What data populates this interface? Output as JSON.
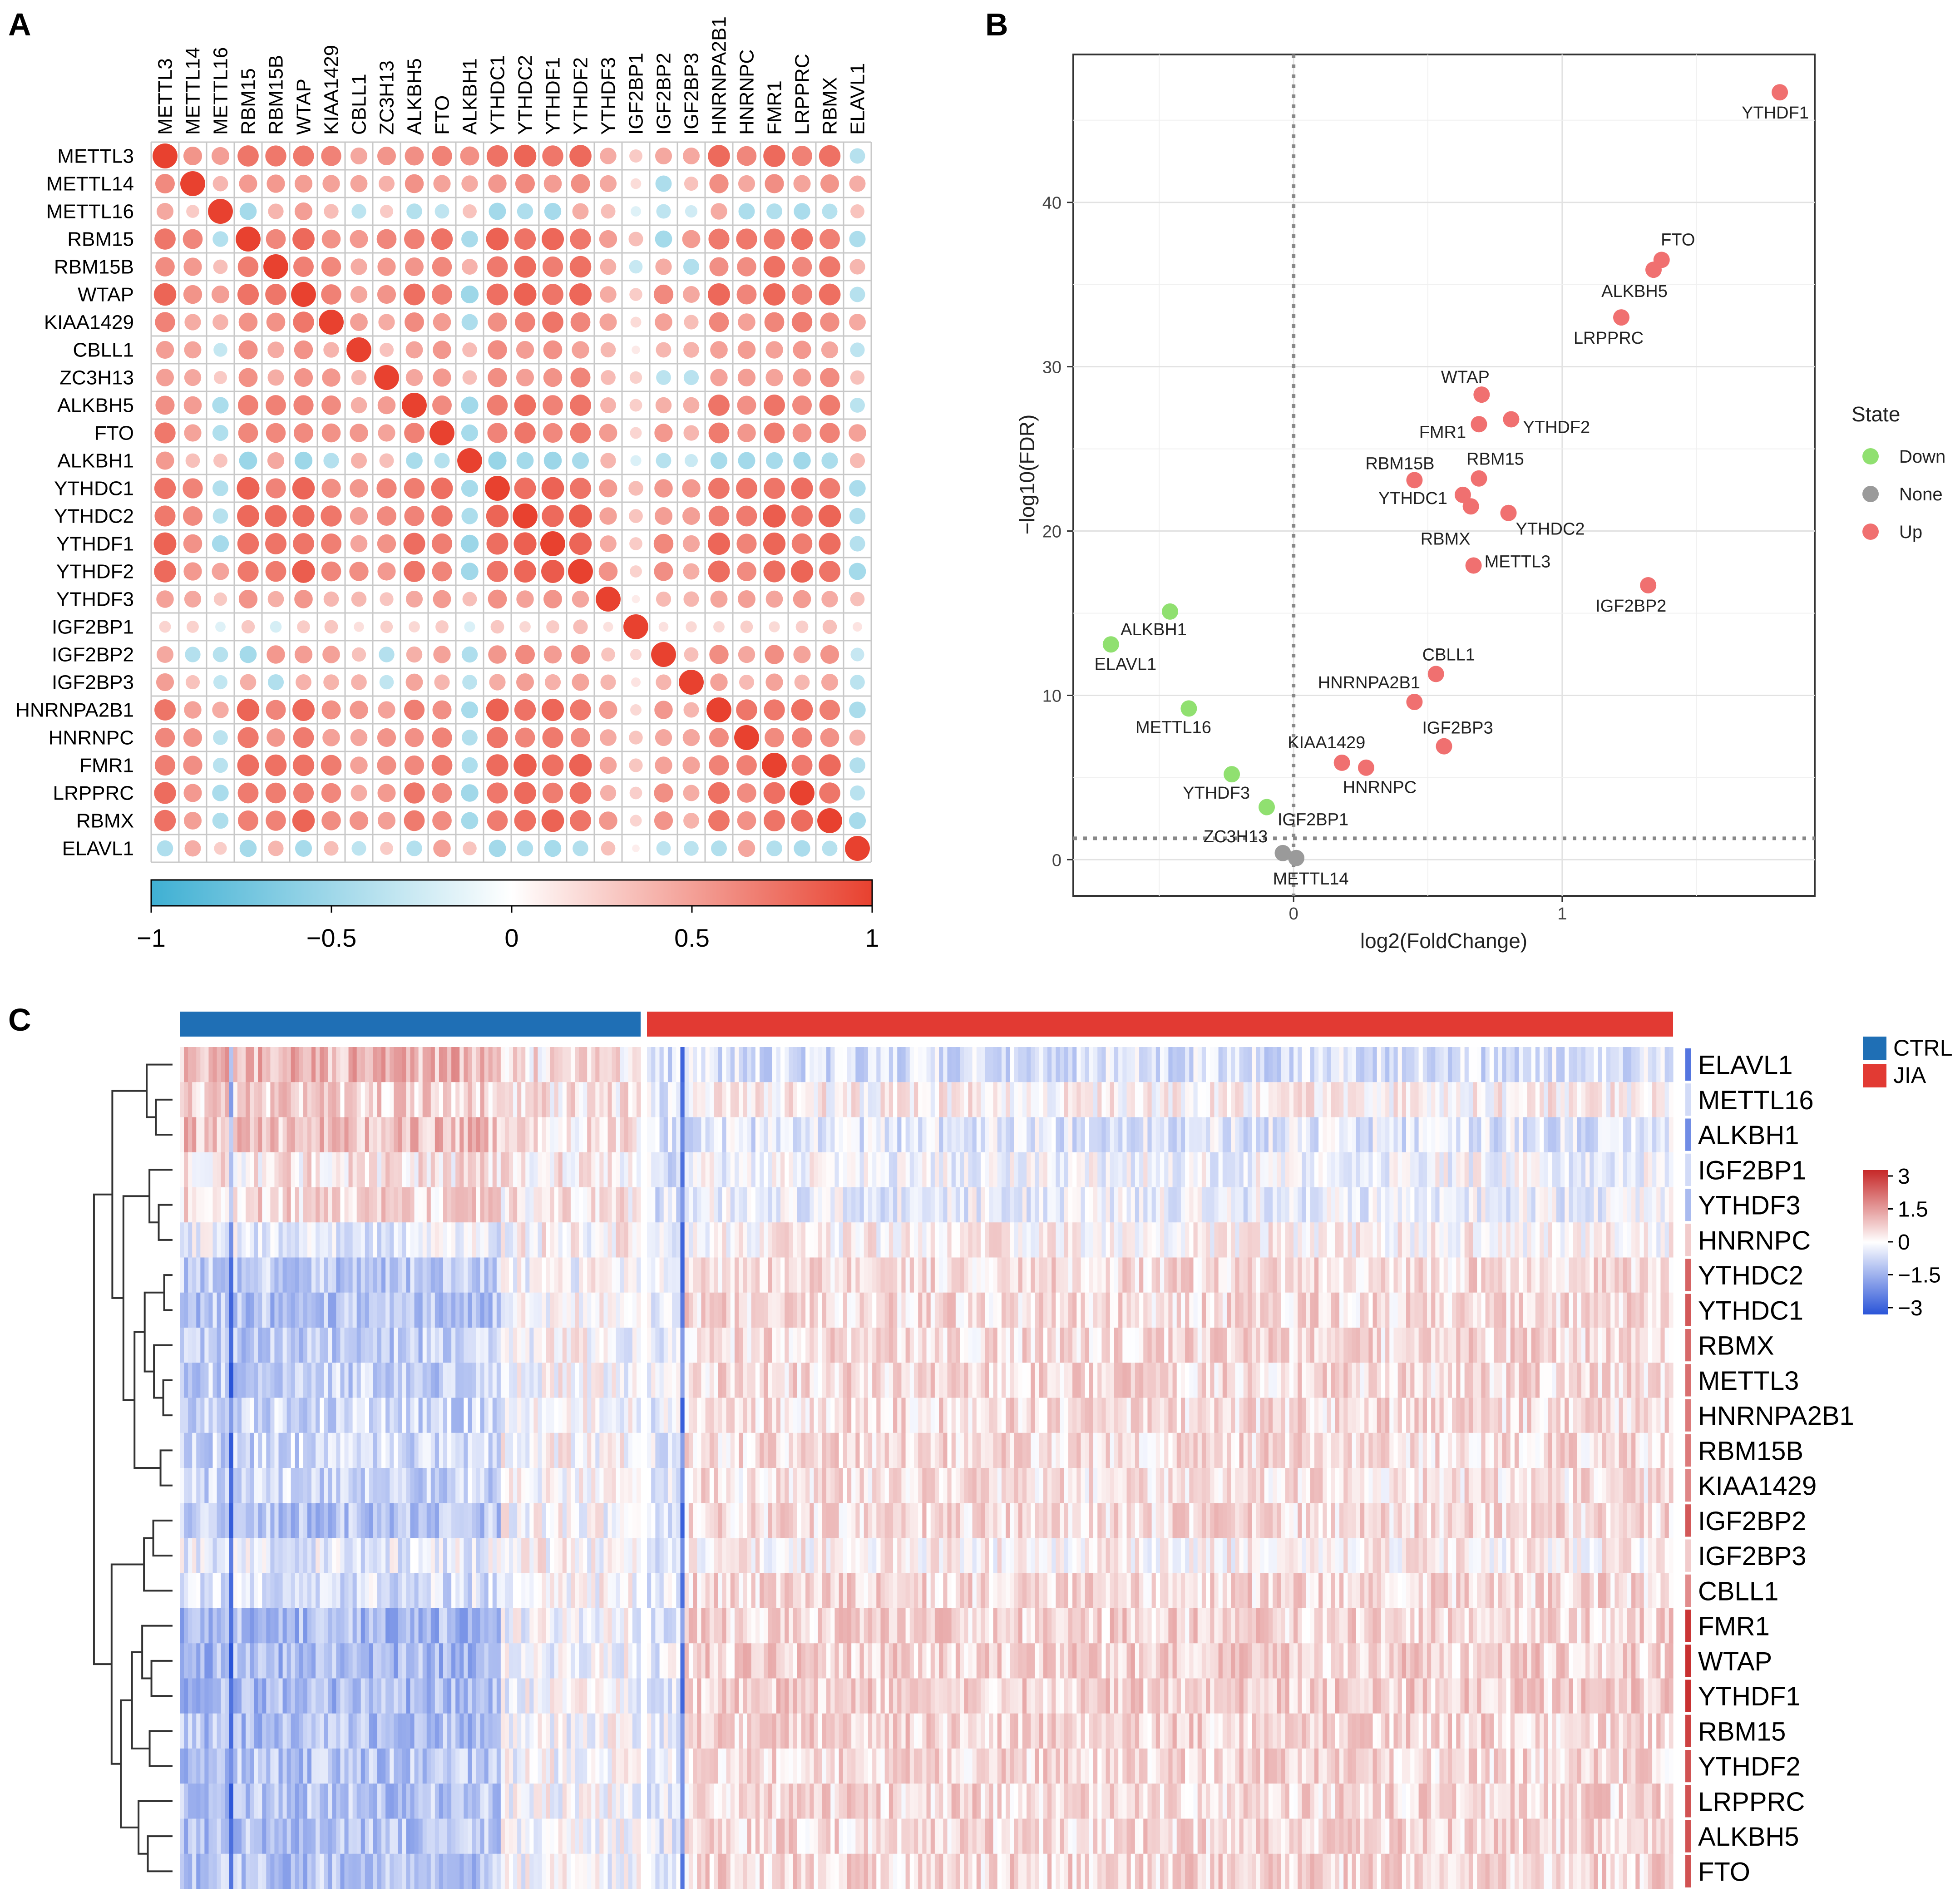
{
  "panels": {
    "a": "A",
    "b": "B",
    "c": "C"
  },
  "genes_corr": [
    "METTL3",
    "METTL14",
    "METTL16",
    "RBM15",
    "RBM15B",
    "WTAP",
    "KIAA1429",
    "CBLL1",
    "ZC3H13",
    "ALKBH5",
    "FTO",
    "ALKBH1",
    "YTHDC1",
    "YTHDC2",
    "YTHDF1",
    "YTHDF2",
    "YTHDF3",
    "IGF2BP1",
    "IGF2BP2",
    "IGF2BP3",
    "HNRNPA2B1",
    "HNRNPC",
    "FMR1",
    "LRPPRC",
    "RBMX",
    "ELAVL1"
  ],
  "chart_data": [
    {
      "type": "heatmap",
      "subtype": "correlation-dot-matrix",
      "panel": "A",
      "value_range": [
        -1,
        1
      ],
      "colorbar": {
        "low_color": "#3fb0d3",
        "mid_color": "#ffffff",
        "high_color": "#e8412f",
        "ticks": [
          "−1",
          "−0.5",
          "0",
          "0.5",
          "1"
        ]
      },
      "row_strength": [
        0.72,
        0.45,
        0.28,
        0.78,
        0.62,
        0.78,
        0.55,
        0.38,
        0.42,
        0.62,
        0.62,
        0.38,
        0.82,
        0.82,
        0.8,
        0.8,
        0.35,
        0.1,
        0.4,
        0.3,
        0.72,
        0.6,
        0.76,
        0.7,
        0.72,
        0.3
      ],
      "neg_pairs": [
        [
          "METTL16",
          "ALKBH5"
        ],
        [
          "METTL16",
          "FTO"
        ],
        [
          "METTL16",
          "IGF2BP2"
        ],
        [
          "METTL16",
          "YTHDF1"
        ],
        [
          "METTL16",
          "LRPPRC"
        ],
        [
          "METTL16",
          "YTHDC1"
        ],
        [
          "METTL16",
          "CBLL1"
        ],
        [
          "METTL16",
          "RBM15"
        ],
        [
          "METTL16",
          "IGF2BP3"
        ],
        [
          "METTL16",
          "FMR1"
        ],
        [
          "METTL16",
          "YTHDC2"
        ],
        [
          "METTL16",
          "RBMX"
        ],
        [
          "METTL16",
          "HNRNPC"
        ],
        [
          "ALKBH1",
          "FTO"
        ],
        [
          "ALKBH1",
          "ALKBH5"
        ],
        [
          "ALKBH1",
          "RBM15"
        ],
        [
          "ALKBH1",
          "WTAP"
        ],
        [
          "ALKBH1",
          "IGF2BP2"
        ],
        [
          "ALKBH1",
          "IGF2BP3"
        ],
        [
          "ALKBH1",
          "YTHDF1"
        ],
        [
          "ALKBH1",
          "YTHDF2"
        ],
        [
          "ALKBH1",
          "LRPPRC"
        ],
        [
          "ALKBH1",
          "FMR1"
        ],
        [
          "ALKBH1",
          "RBMX"
        ],
        [
          "ALKBH1",
          "YTHDC1"
        ],
        [
          "ALKBH1",
          "YTHDC2"
        ],
        [
          "ALKBH1",
          "KIAA1429"
        ],
        [
          "ALKBH1",
          "HNRNPA2B1"
        ],
        [
          "ALKBH1",
          "IGF2BP1"
        ],
        [
          "ALKBH1",
          "HNRNPC"
        ],
        [
          "ELAVL1",
          "YTHDF1"
        ],
        [
          "ELAVL1",
          "IGF2BP2"
        ],
        [
          "ELAVL1",
          "LRPPRC"
        ],
        [
          "ELAVL1",
          "IGF2BP3"
        ],
        [
          "ELAVL1",
          "ALKBH5"
        ],
        [
          "ELAVL1",
          "YTHDF2"
        ],
        [
          "ELAVL1",
          "FMR1"
        ],
        [
          "ELAVL1",
          "RBMX"
        ],
        [
          "ELAVL1",
          "YTHDC1"
        ],
        [
          "ELAVL1",
          "WTAP"
        ],
        [
          "ELAVL1",
          "METTL3"
        ],
        [
          "ELAVL1",
          "YTHDC2"
        ],
        [
          "ELAVL1",
          "HNRNPA2B1"
        ],
        [
          "ELAVL1",
          "CBLL1"
        ],
        [
          "ELAVL1",
          "RBM15"
        ],
        [
          "IGF2BP2",
          "ZC3H13"
        ],
        [
          "IGF2BP3",
          "ZC3H13"
        ],
        [
          "IGF2BP2",
          "RBM15"
        ],
        [
          "IGF2BP3",
          "RBM15B"
        ],
        [
          "IGF2BP2",
          "METTL14"
        ],
        [
          "IGF2BP1",
          "RBM15B"
        ],
        [
          "IGF2BP1",
          "METTL16"
        ]
      ]
    },
    {
      "type": "scatter",
      "panel": "B",
      "title": "",
      "xlabel": "log2(FoldChange)",
      "ylabel": "−log10(FDR)",
      "xlim": [
        -0.82,
        1.94
      ],
      "ylim": [
        -2.2,
        49
      ],
      "xticks": [
        0,
        1
      ],
      "yticks": [
        0,
        10,
        20,
        30,
        40
      ],
      "hline": 1.3,
      "vline": 0,
      "legend": {
        "title": "State",
        "position": "right",
        "entries": [
          {
            "name": "Down",
            "color": "#90e070"
          },
          {
            "name": "None",
            "color": "#9a9a9a"
          },
          {
            "name": "Up",
            "color": "#f07070"
          }
        ]
      },
      "points": [
        {
          "gene": "YTHDF1",
          "x": 1.81,
          "y": 46.7,
          "state": "Up"
        },
        {
          "gene": "FTO",
          "x": 1.37,
          "y": 36.5,
          "state": "Up"
        },
        {
          "gene": "ALKBH5",
          "x": 1.34,
          "y": 35.9,
          "state": "Up"
        },
        {
          "gene": "LRPPRC",
          "x": 1.22,
          "y": 33.0,
          "state": "Up"
        },
        {
          "gene": "WTAP",
          "x": 0.7,
          "y": 28.3,
          "state": "Up"
        },
        {
          "gene": "YTHDF2",
          "x": 0.81,
          "y": 26.8,
          "state": "Up"
        },
        {
          "gene": "FMR1",
          "x": 0.69,
          "y": 26.5,
          "state": "Up"
        },
        {
          "gene": "RBM15",
          "x": 0.69,
          "y": 23.2,
          "state": "Up"
        },
        {
          "gene": "RBM15B",
          "x": 0.45,
          "y": 23.1,
          "state": "Up"
        },
        {
          "gene": "YTHDC1",
          "x": 0.63,
          "y": 22.2,
          "state": "Up"
        },
        {
          "gene": "RBMX",
          "x": 0.66,
          "y": 21.5,
          "state": "Up"
        },
        {
          "gene": "YTHDC2",
          "x": 0.8,
          "y": 21.1,
          "state": "Up"
        },
        {
          "gene": "METTL3",
          "x": 0.67,
          "y": 17.9,
          "state": "Up"
        },
        {
          "gene": "IGF2BP2",
          "x": 1.32,
          "y": 16.7,
          "state": "Up"
        },
        {
          "gene": "CBLL1",
          "x": 0.53,
          "y": 11.3,
          "state": "Up"
        },
        {
          "gene": "HNRNPA2B1",
          "x": 0.45,
          "y": 9.6,
          "state": "Up"
        },
        {
          "gene": "IGF2BP3",
          "x": 0.56,
          "y": 6.9,
          "state": "Up"
        },
        {
          "gene": "KIAA1429",
          "x": 0.18,
          "y": 5.9,
          "state": "Up"
        },
        {
          "gene": "HNRNPC",
          "x": 0.27,
          "y": 5.6,
          "state": "Up"
        },
        {
          "gene": "ALKBH1",
          "x": -0.46,
          "y": 15.1,
          "state": "Down"
        },
        {
          "gene": "ELAVL1",
          "x": -0.68,
          "y": 13.1,
          "state": "Down"
        },
        {
          "gene": "METTL16",
          "x": -0.39,
          "y": 9.2,
          "state": "Down"
        },
        {
          "gene": "YTHDF3",
          "x": -0.23,
          "y": 5.2,
          "state": "Down"
        },
        {
          "gene": "IGF2BP1",
          "x": -0.1,
          "y": 3.2,
          "state": "Down"
        },
        {
          "gene": "ZC3H13",
          "x": -0.04,
          "y": 0.4,
          "state": "None"
        },
        {
          "gene": "METTL14",
          "x": 0.01,
          "y": 0.1,
          "state": "None"
        }
      ]
    },
    {
      "type": "heatmap",
      "subtype": "clustered-expression",
      "panel": "C",
      "rows": [
        "ELAVL1",
        "METTL16",
        "ALKBH1",
        "IGF2BP1",
        "YTHDF3",
        "HNRNPC",
        "YTHDC2",
        "YTHDC1",
        "RBMX",
        "METTL3",
        "HNRNPA2B1",
        "RBM15B",
        "KIAA1429",
        "IGF2BP2",
        "IGF2BP3",
        "CBLL1",
        "FMR1",
        "WTAP",
        "YTHDF1",
        "RBM15",
        "YTHDF2",
        "LRPPRC",
        "ALKBH5",
        "FTO"
      ],
      "groups": [
        {
          "name": "CTRL",
          "color": "#1f6fb5",
          "n_samples": 112
        },
        {
          "name": "JIA",
          "color": "#e23a33",
          "n_samples": 246
        }
      ],
      "value_range": [
        -3,
        3
      ],
      "colorbar": {
        "low_color": "#2a54d8",
        "mid_color": "#ffffff",
        "high_color": "#c62828",
        "ticks": [
          "3",
          "1.5",
          "0",
          "−1.5",
          "−3"
        ]
      },
      "ctrl_row_means": [
        1.0,
        0.55,
        0.85,
        0.3,
        0.5,
        -0.3,
        -0.9,
        -1.0,
        -0.85,
        -0.8,
        -0.7,
        -0.7,
        -0.7,
        -1.0,
        -0.3,
        -0.5,
        -1.2,
        -1.2,
        -1.2,
        -1.1,
        -1.0,
        -1.0,
        -1.0,
        -1.0
      ],
      "jia_row_means": [
        -0.5,
        0.15,
        -0.4,
        -0.1,
        -0.25,
        0.15,
        0.45,
        0.45,
        0.45,
        0.45,
        0.45,
        0.45,
        0.35,
        0.45,
        0.15,
        0.5,
        0.55,
        0.6,
        0.6,
        0.55,
        0.5,
        0.5,
        0.5,
        0.5
      ],
      "dendrogram_merges": [
        [
          6,
          7
        ],
        [
          9,
          10
        ],
        [
          8,
          "m1"
        ],
        [
          "m0",
          "m2"
        ],
        [
          11,
          12
        ],
        [
          "m3",
          "m4"
        ],
        [
          4,
          5
        ],
        [
          3,
          "m6"
        ],
        [
          "m7",
          "m5"
        ],
        [
          1,
          2
        ],
        [
          0,
          "m9"
        ],
        [
          "m10",
          "m8"
        ],
        [
          13,
          14
        ],
        [
          "m12",
          15
        ],
        [
          17,
          18
        ],
        [
          16,
          "m14"
        ],
        [
          19,
          20
        ],
        [
          "m15",
          "m16"
        ],
        [
          22,
          23
        ],
        [
          21,
          "m18"
        ],
        [
          "m17",
          "m19"
        ],
        [
          "m13",
          "m20"
        ],
        [
          "m11",
          "m21"
        ]
      ]
    }
  ]
}
